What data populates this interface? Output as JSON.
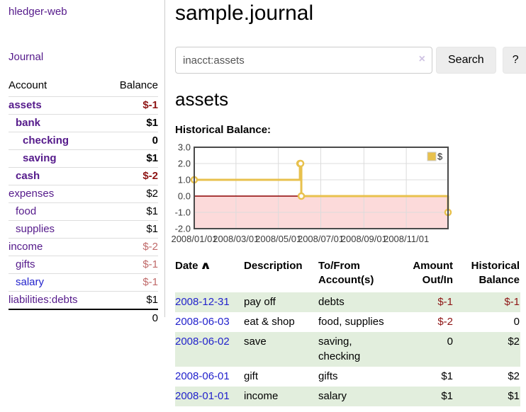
{
  "app": {
    "brand": "hledger-web"
  },
  "sidebar": {
    "journal_label": "Journal",
    "accounts_table": {
      "headers": {
        "account": "Account",
        "balance": "Balance"
      },
      "rows": [
        {
          "name": "assets",
          "indent": 1,
          "bold": true,
          "balance": "$-1",
          "balance_style": "neg-strong",
          "link_color": "purple"
        },
        {
          "name": "bank",
          "indent": 2,
          "bold": true,
          "balance": "$1",
          "balance_style": "normal",
          "link_color": "purple"
        },
        {
          "name": "checking",
          "indent": 3,
          "bold": true,
          "balance": "0",
          "balance_style": "normal",
          "link_color": "purple"
        },
        {
          "name": "saving",
          "indent": 3,
          "bold": true,
          "balance": "$1",
          "balance_style": "normal",
          "link_color": "purple"
        },
        {
          "name": "cash",
          "indent": 2,
          "bold": true,
          "balance": "$-2",
          "balance_style": "neg-strong",
          "link_color": "purple"
        },
        {
          "name": "expenses",
          "indent": 1,
          "bold": false,
          "balance": "$2",
          "balance_style": "normal",
          "link_color": "purple"
        },
        {
          "name": "food",
          "indent": 2,
          "bold": false,
          "balance": "$1",
          "balance_style": "normal",
          "link_color": "purple"
        },
        {
          "name": "supplies",
          "indent": 2,
          "bold": false,
          "balance": "$1",
          "balance_style": "normal",
          "link_color": "purple"
        },
        {
          "name": "income",
          "indent": 1,
          "bold": false,
          "balance": "$-2",
          "balance_style": "neg-soft",
          "link_color": "purple"
        },
        {
          "name": "gifts",
          "indent": 2,
          "bold": false,
          "balance": "$-1",
          "balance_style": "neg-soft",
          "link_color": "purple"
        },
        {
          "name": "salary",
          "indent": 2,
          "bold": false,
          "balance": "$-1",
          "balance_style": "neg-soft",
          "link_color": "blue"
        },
        {
          "name": "liabilities:debts",
          "indent": 1,
          "bold": false,
          "balance": "$1",
          "balance_style": "normal",
          "link_color": "purple"
        }
      ],
      "total": "0"
    }
  },
  "main": {
    "title": "sample.journal",
    "search": {
      "value": "inacct:assets",
      "clear_icon": "×",
      "button_label": "Search",
      "help_label": "?"
    },
    "account_heading": "assets",
    "chart_label": "Historical Balance:"
  },
  "chart_data": {
    "type": "line",
    "title": "Historical Balance",
    "steps": true,
    "series": [
      {
        "name": "$",
        "color": "#e8c14d",
        "points": [
          {
            "date": "2008-01-01",
            "day": 0,
            "value": 1
          },
          {
            "date": "2008-06-01",
            "day": 152,
            "value": 2
          },
          {
            "date": "2008-06-02",
            "day": 153,
            "value": 2
          },
          {
            "date": "2008-06-03",
            "day": 154,
            "value": 0
          },
          {
            "date": "2008-12-31",
            "day": 365,
            "value": -1
          }
        ]
      }
    ],
    "xlim_days": [
      0,
      365
    ],
    "x_tick_days": [
      0,
      60,
      121,
      182,
      244,
      305
    ],
    "x_tick_labels": [
      "2008/01/01",
      "2008/03/01",
      "2008/05/01",
      "2008/07/01",
      "2008/09/01",
      "2008/11/01"
    ],
    "ylim": [
      -2,
      3
    ],
    "y_ticks": [
      3,
      2,
      1,
      0,
      -1,
      -2
    ],
    "y_tick_labels": [
      "3.0",
      "2.0",
      "1.0",
      "0.0",
      "-1.0",
      "-2.0"
    ],
    "grid": true,
    "legend_position": "top-right",
    "legend_label": "$",
    "negative_region_color": "#fcdada",
    "zero_line_color": "#8b0000",
    "border_color": "#4a4a4a",
    "gridline_color": "#dcdcdc"
  },
  "register": {
    "sort_icon": "∧",
    "headers": [
      "Date",
      "Description",
      "To/From Account(s)",
      "Amount Out/In",
      "Historical Balance"
    ],
    "rows": [
      {
        "date": "2008-12-31",
        "description": "pay off",
        "accounts": "debts",
        "amount": "$-1",
        "amount_neg": true,
        "balance": "$-1",
        "balance_neg": true
      },
      {
        "date": "2008-06-03",
        "description": "eat & shop",
        "accounts": "food, supplies",
        "amount": "$-2",
        "amount_neg": true,
        "balance": "0",
        "balance_neg": false
      },
      {
        "date": "2008-06-02",
        "description": "save",
        "accounts": "saving, checking",
        "amount": "0",
        "amount_neg": false,
        "balance": "$2",
        "balance_neg": false
      },
      {
        "date": "2008-06-01",
        "description": "gift",
        "accounts": "gifts",
        "amount": "$1",
        "amount_neg": false,
        "balance": "$2",
        "balance_neg": false
      },
      {
        "date": "2008-01-01",
        "description": "income",
        "accounts": "salary",
        "amount": "$1",
        "amount_neg": false,
        "balance": "$1",
        "balance_neg": false
      }
    ]
  }
}
